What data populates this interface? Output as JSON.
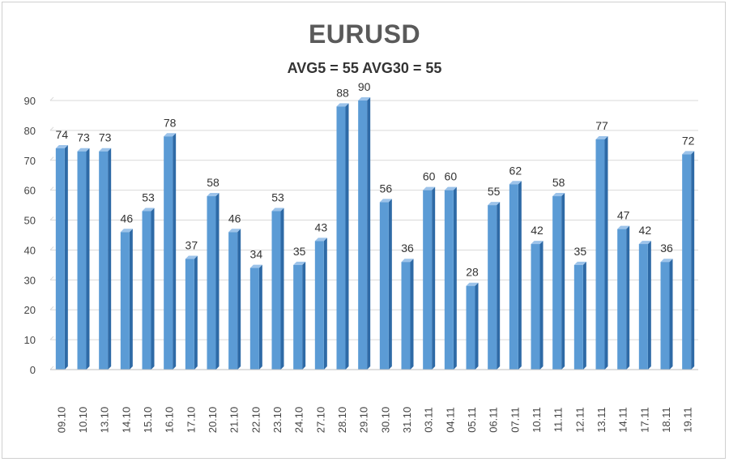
{
  "chart_data": {
    "type": "bar",
    "title": "EURUSD",
    "subtitle": "AVG5 = 55 AVG30 = 55",
    "categories": [
      "09.10",
      "10.10",
      "13.10",
      "14.10",
      "15.10",
      "16.10",
      "17.10",
      "20.10",
      "21.10",
      "22.10",
      "23.10",
      "24.10",
      "27.10",
      "28.10",
      "29.10",
      "30.10",
      "31.10",
      "03.11",
      "04.11",
      "05.11",
      "06.11",
      "07.11",
      "10.11",
      "11.11",
      "12.11",
      "13.11",
      "14.11",
      "17.11",
      "18.11",
      "19.11"
    ],
    "values": [
      74,
      73,
      73,
      46,
      53,
      78,
      37,
      58,
      46,
      34,
      53,
      35,
      43,
      88,
      90,
      56,
      36,
      60,
      60,
      28,
      55,
      62,
      42,
      58,
      35,
      77,
      47,
      42,
      36,
      72
    ],
    "ylim": [
      0,
      90
    ],
    "yticks": [
      0,
      10,
      20,
      30,
      40,
      50,
      60,
      70,
      80,
      90
    ],
    "xlabel": "",
    "ylabel": "",
    "grid": true,
    "legend": "none",
    "colors": {
      "bar_front": "#5b9bd5",
      "bar_side": "#2e6aa6",
      "bar_top": "#9cc3ea",
      "grid": "#d9d9d9"
    }
  }
}
